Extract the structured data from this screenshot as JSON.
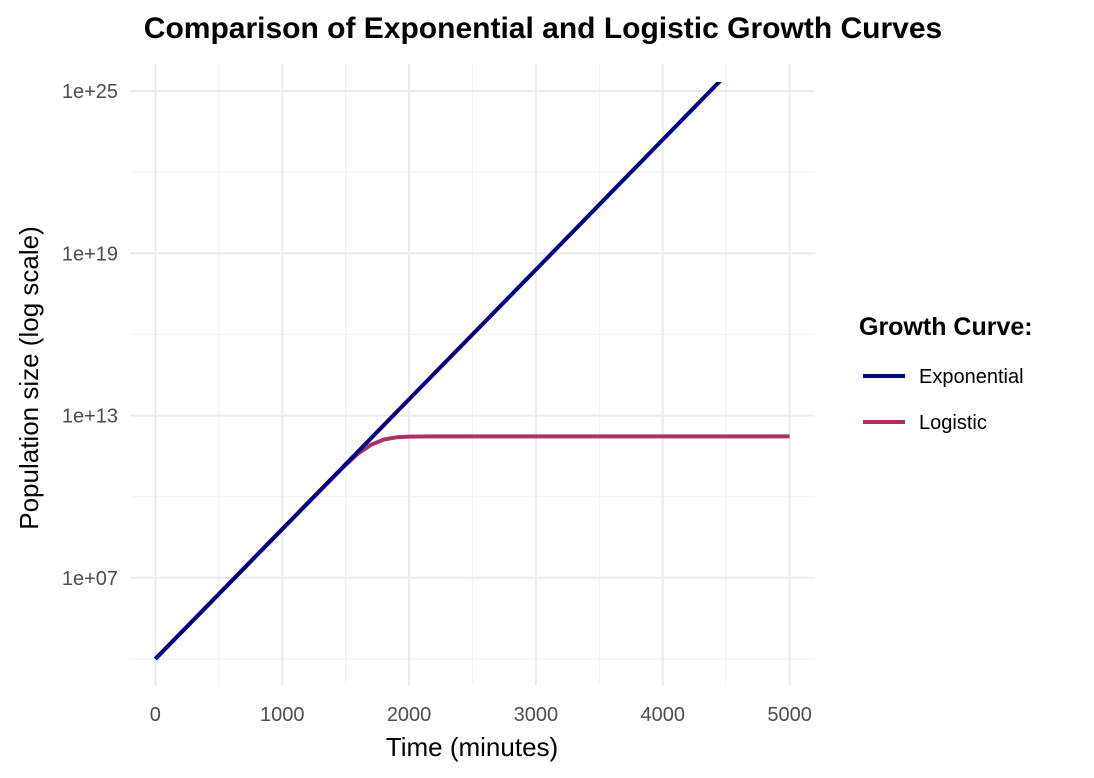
{
  "chart_data": {
    "type": "line",
    "title": "Comparison of Exponential and Logistic Growth Curves",
    "xlabel": "Time (minutes)",
    "ylabel": "Population size (log scale)",
    "y_scale": "log10",
    "xlim": [
      -200,
      5200
    ],
    "ylim": [
      1000.0,
      1e+26
    ],
    "x_ticks": [
      0,
      1000,
      2000,
      3000,
      4000,
      5000
    ],
    "x_tick_labels": [
      "0",
      "1000",
      "2000",
      "3000",
      "4000",
      "5000"
    ],
    "y_ticks": [
      10000000.0,
      10000000000000.0,
      1e+19,
      1e+25
    ],
    "y_tick_labels": [
      "1e+07",
      "1e+13",
      "1e+19",
      "1e+25"
    ],
    "grid": true,
    "legend": {
      "title": "Growth Curve:",
      "position": "right"
    },
    "series": [
      {
        "name": "Exponential",
        "color": "#000080",
        "x": [
          0,
          1000,
          2000,
          3000,
          4000,
          5000
        ],
        "y": [
          10000.0,
          630000000.0,
          40000000000000.0,
          2.5e+18,
          1.6e+23,
          1e+28
        ]
      },
      {
        "name": "Logistic",
        "color": "#AA3366",
        "x": [
          0,
          500,
          1000,
          1200,
          1400,
          1500,
          1600,
          1700,
          1800,
          1900,
          2000,
          2200,
          2500,
          3000,
          4000,
          5000
        ],
        "y": [
          10000.0,
          2500000.0,
          630000000.0,
          5700000000.0,
          51000000000.0,
          150000000000.0,
          400000000000.0,
          830000000000.0,
          1300000000000.0,
          1570000000000.0,
          1660000000000.0,
          1700000000000.0,
          1700000000000.0,
          1700000000000.0,
          1700000000000.0,
          1700000000000.0
        ]
      }
    ]
  }
}
